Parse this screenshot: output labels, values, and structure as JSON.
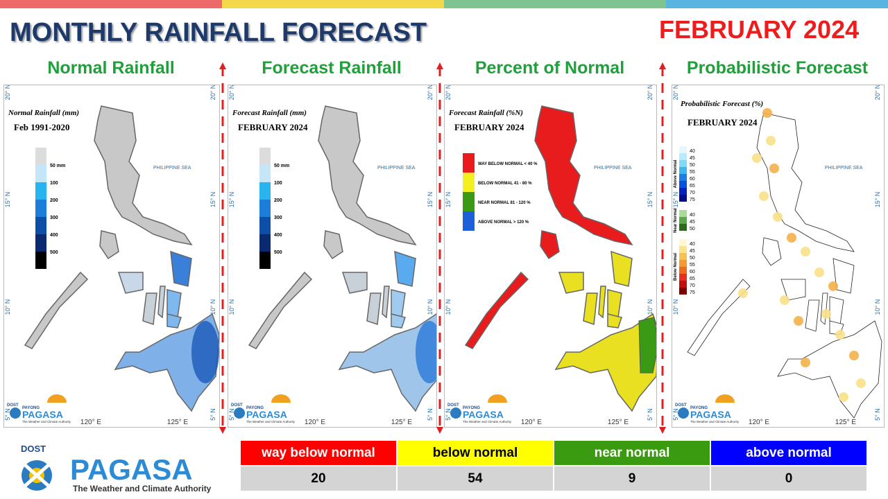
{
  "header": {
    "title": "MONTHLY RAINFALL FORECAST",
    "date": "FEBRUARY 2024"
  },
  "panels": [
    {
      "title": "Normal Rainfall",
      "map_title": "Normal Rainfall (mm)",
      "map_subtitle": "Feb 1991-2020",
      "legend": [
        "50 mm",
        "100",
        "200",
        "300",
        "400",
        "500"
      ]
    },
    {
      "title": "Forecast Rainfall",
      "map_title": "Forecast Rainfall (mm)",
      "map_subtitle": "FEBRUARY 2024",
      "legend": [
        "50 mm",
        "100",
        "200",
        "300",
        "400",
        "500"
      ]
    },
    {
      "title": "Percent of Normal",
      "map_title": "Forecast Rainfall (%N)",
      "map_subtitle": "FEBRUARY 2024",
      "legend": [
        "WAY BELOW NORMAL < 40 %",
        "BELOW NORMAL 41 - 80 %",
        "NEAR NORMAL 81 - 120 %",
        "ABOVE NORMAL > 120 %"
      ]
    },
    {
      "title": "Probabilistic Forecast",
      "map_title": "Probabilistic Forecast (%)",
      "map_subtitle": "FEBRUARY 2024",
      "legend_groups": [
        {
          "name": "Above Normal",
          "levels": [
            40,
            45,
            50,
            55,
            60,
            65,
            70,
            75
          ]
        },
        {
          "name": "Near Normal",
          "levels": [
            40,
            45,
            50
          ]
        },
        {
          "name": "Below Normal",
          "levels": [
            40,
            45,
            50,
            55,
            60,
            65,
            70,
            75
          ]
        }
      ]
    }
  ],
  "map_labels": {
    "sea": "PHILIPPINE SEA",
    "lat": [
      "20° N",
      "15° N",
      "10° N",
      "5° N"
    ],
    "lon": [
      "120° E",
      "125° E"
    ]
  },
  "panel_logo": {
    "agency": "DOST",
    "brand": "PAYONG",
    "name": "PAGASA",
    "tagline": "The Weather and Climate Authority"
  },
  "logo": {
    "agency": "DOST",
    "name": "PAGASA",
    "tagline": "The Weather and Climate Authority"
  },
  "table": {
    "headers": [
      "way below normal",
      "below normal",
      "near normal",
      "above normal"
    ],
    "rows": [
      [
        "20",
        "54",
        "9",
        "0"
      ]
    ]
  }
}
